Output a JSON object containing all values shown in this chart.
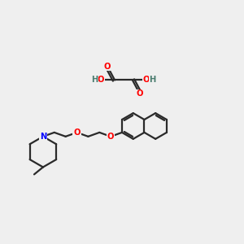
{
  "bg_color": "#efefef",
  "atom_colors": {
    "O": "#ff0000",
    "N": "#0000ff",
    "C": "#2a2a2a",
    "H": "#4a7c6f"
  },
  "line_color": "#2a2a2a",
  "line_width": 1.6,
  "figsize": [
    3.0,
    3.0
  ],
  "dpi": 100
}
